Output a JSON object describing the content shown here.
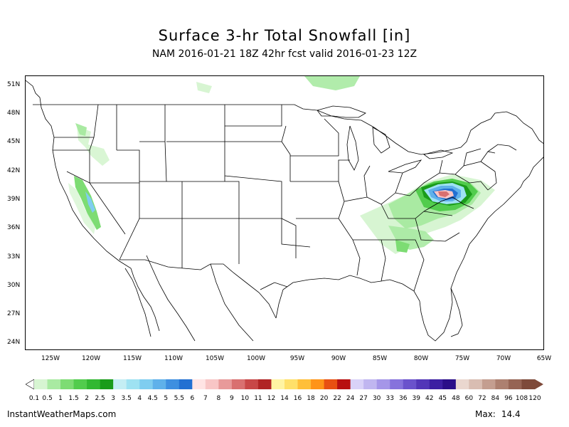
{
  "title": "Surface 3-hr Total Snowfall [in]",
  "subtitle": "NAM 2016-01-21 18Z 42hr fcst valid 2016-01-23 12Z",
  "map": {
    "lat_labels": [
      "51N",
      "48N",
      "45N",
      "42N",
      "39N",
      "36N",
      "33N",
      "30N",
      "27N",
      "24N"
    ],
    "lon_labels": [
      "125W",
      "120W",
      "115W",
      "110W",
      "105W",
      "100W",
      "95W",
      "90W",
      "85W",
      "80W",
      "75W",
      "70W",
      "65W"
    ],
    "lat_range": [
      23,
      52
    ],
    "lon_range": [
      -128,
      -65
    ],
    "boundary_color": "#000000"
  },
  "colorbar": {
    "labels": [
      "0.1",
      "0.5",
      "1",
      "1.5",
      "2",
      "2.5",
      "3",
      "3.5",
      "4",
      "4.5",
      "5",
      "5.5",
      "6",
      "7",
      "8",
      "9",
      "10",
      "11",
      "12",
      "14",
      "16",
      "18",
      "20",
      "22",
      "24",
      "27",
      "30",
      "33",
      "36",
      "39",
      "42",
      "45",
      "48",
      "60",
      "72",
      "84",
      "96",
      "108",
      "120"
    ],
    "colors": [
      "#d7f5d2",
      "#a9eaa2",
      "#7ddc73",
      "#52cc4d",
      "#32b832",
      "#1a9c1a",
      "#c4eef4",
      "#9ee2f2",
      "#7fcdf0",
      "#5fb1ea",
      "#3e8fe0",
      "#2270d2",
      "#ffe4e4",
      "#f8c6c6",
      "#e89a9a",
      "#d97070",
      "#c84747",
      "#b02424",
      "#fff4a3",
      "#ffe06a",
      "#ffbf3a",
      "#ff9418",
      "#e85012",
      "#b81010",
      "#d9d2f8",
      "#c0b6f0",
      "#a596e8",
      "#8672dc",
      "#6a52cc",
      "#5236b8",
      "#3c1fa2",
      "#2a0e88",
      "#ead7cf",
      "#d9bdb2",
      "#c49e90",
      "#ad8070",
      "#966454",
      "#7e4a3a"
    ],
    "min_arrow_color": "#ffffff",
    "max_arrow_color": "#7e4a3a"
  },
  "footer": {
    "site": "InstantWeatherMaps.com",
    "max_label": "Max:",
    "max_value": "14.4"
  }
}
